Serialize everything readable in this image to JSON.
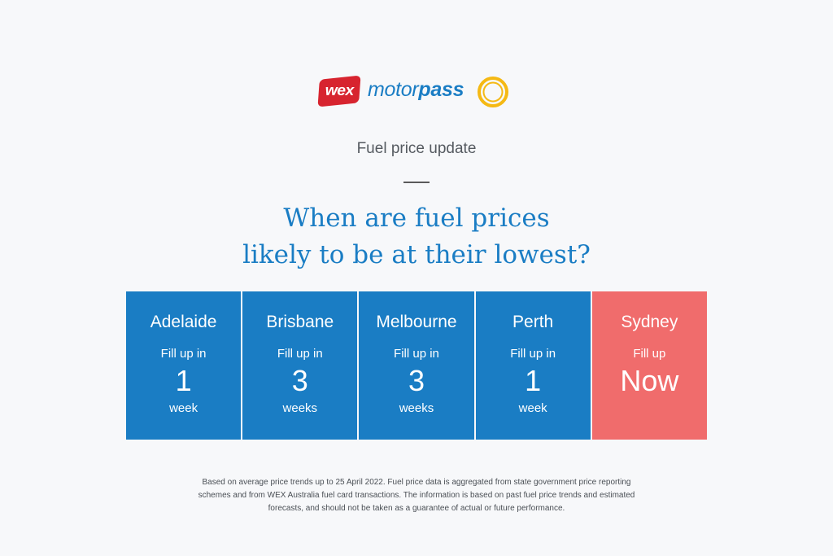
{
  "brand": {
    "wex": "wex",
    "motor": "motor",
    "pass": "pass",
    "accent_color": "#1a7dc4",
    "wex_color": "#d7242f",
    "ring_color": "#f5b914"
  },
  "subtitle": "Fuel price update",
  "headline": {
    "line1": "When are fuel prices",
    "line2": "likely to be at their lowest?"
  },
  "cards": [
    {
      "city": "Adelaide",
      "label": "Fill up in",
      "value": "1",
      "unit": "week"
    },
    {
      "city": "Brisbane",
      "label": "Fill up in",
      "value": "3",
      "unit": "weeks"
    },
    {
      "city": "Melbourne",
      "label": "Fill up in",
      "value": "3",
      "unit": "weeks"
    },
    {
      "city": "Perth",
      "label": "Fill up in",
      "value": "1",
      "unit": "week"
    },
    {
      "city": "Sydney",
      "label": "Fill up",
      "value": "Now",
      "unit": "",
      "color": "#f06c6c"
    }
  ],
  "footnote": {
    "line1": "Based on average price trends up to 25 April 2022. Fuel price data is aggregated from state government price reporting",
    "line2": "schemes and from WEX Australia fuel card transactions. The information is based on past fuel price trends and estimated",
    "line3": "forecasts, and should not be taken as a guarantee of actual or future performance."
  }
}
